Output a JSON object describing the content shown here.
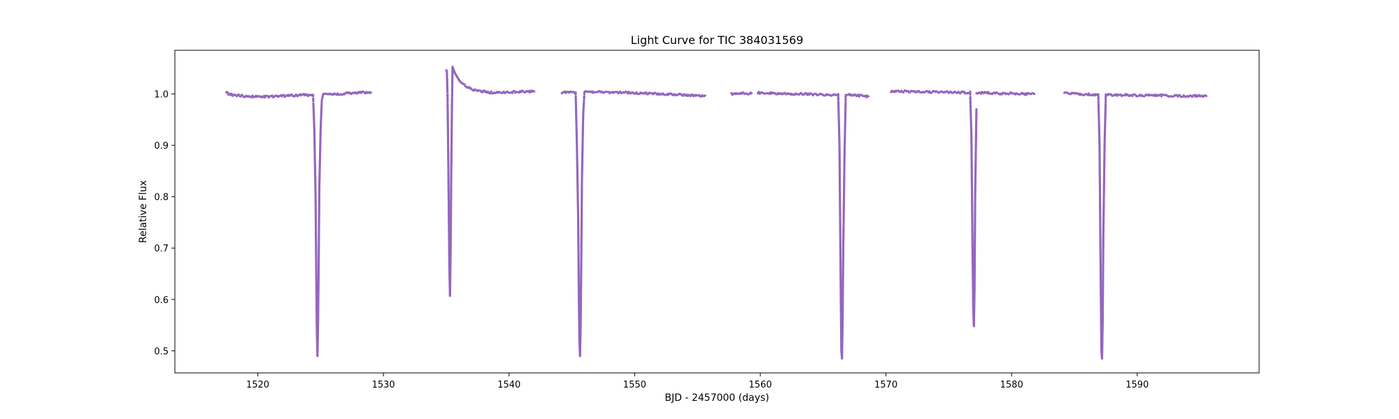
{
  "chart_data": {
    "type": "scatter",
    "title": "Light Curve for TIC 384031569",
    "xlabel": "BJD - 2457000 (days)",
    "ylabel": "Relative Flux",
    "xlim": [
      1513.4,
      1599.7
    ],
    "ylim": [
      0.457,
      1.085
    ],
    "xticks": [
      1520,
      1530,
      1540,
      1550,
      1560,
      1570,
      1580,
      1590
    ],
    "yticks": [
      0.5,
      0.6,
      0.7,
      0.8,
      0.9,
      1.0
    ],
    "xtick_labels": [
      "1520",
      "1530",
      "1540",
      "1550",
      "1560",
      "1570",
      "1580",
      "1590"
    ],
    "ytick_labels": [
      "0.5",
      "0.6",
      "0.7",
      "0.8",
      "0.9",
      "1.0"
    ],
    "grid": false,
    "legend": "none",
    "series": [
      {
        "color": "#9467bd",
        "marker": "dot",
        "segments": [
          {
            "x": [
              1517.5,
              1517.7,
              1518.0,
              1518.5,
              1519.0,
              1519.5,
              1520.0,
              1520.5,
              1521.0,
              1521.5,
              1522.0,
              1522.5,
              1523.0,
              1523.5,
              1524.0,
              1524.4
            ],
            "y": [
              1.003,
              1.0,
              0.998,
              0.997,
              0.996,
              0.995,
              0.995,
              0.995,
              0.995,
              0.996,
              0.996,
              0.997,
              0.997,
              0.998,
              0.998,
              0.998
            ]
          },
          {
            "x": [
              1524.4,
              1524.5,
              1524.6,
              1524.65,
              1524.7,
              1524.75,
              1524.8,
              1524.85,
              1524.9,
              1525.0,
              1525.1,
              1525.2
            ],
            "y": [
              0.998,
              0.93,
              0.8,
              0.66,
              0.54,
              0.49,
              0.56,
              0.68,
              0.82,
              0.93,
              0.99,
              0.999
            ]
          },
          {
            "x": [
              1525.2,
              1525.5,
              1526.0,
              1526.5,
              1527.0,
              1527.5,
              1528.0,
              1528.5,
              1529.0
            ],
            "y": [
              0.999,
              0.999,
              1.0,
              1.0,
              1.001,
              1.001,
              1.002,
              1.003,
              1.003
            ]
          },
          {
            "x": [
              1535.0,
              1535.05,
              1535.1,
              1535.15,
              1535.2,
              1535.25,
              1535.3,
              1535.35,
              1535.4,
              1535.45,
              1535.5,
              1535.6,
              1535.7,
              1535.9,
              1536.1,
              1536.4,
              1536.8,
              1537.2,
              1537.8,
              1538.5,
              1539.5,
              1540.5,
              1541.5,
              1542.0
            ],
            "y": [
              1.046,
              1.045,
              1.0,
              0.9,
              0.78,
              0.66,
              0.607,
              0.7,
              0.85,
              0.97,
              1.053,
              1.046,
              1.04,
              1.032,
              1.024,
              1.018,
              1.012,
              1.008,
              1.005,
              1.003,
              1.003,
              1.004,
              1.005,
              1.005
            ]
          },
          {
            "x": [
              1544.2,
              1544.5,
              1545.0,
              1545.3
            ],
            "y": [
              1.002,
              1.003,
              1.003,
              1.003
            ]
          },
          {
            "x": [
              1545.3,
              1545.4,
              1545.5,
              1545.55,
              1545.6,
              1545.65,
              1545.7,
              1545.75,
              1545.8,
              1545.9,
              1546.0
            ],
            "y": [
              1.003,
              0.9,
              0.76,
              0.62,
              0.52,
              0.49,
              0.55,
              0.68,
              0.83,
              0.96,
              1.003
            ]
          },
          {
            "x": [
              1546.0,
              1547.0,
              1548.0,
              1549.0,
              1550.0,
              1551.0,
              1552.0,
              1553.0,
              1554.0,
              1555.0,
              1555.6
            ],
            "y": [
              1.004,
              1.004,
              1.003,
              1.003,
              1.002,
              1.001,
              1.0,
              0.999,
              0.998,
              0.997,
              0.997
            ]
          },
          {
            "x": [
              1557.7,
              1558.2,
              1558.8,
              1559.3
            ],
            "y": [
              1.0,
              1.001,
              1.001,
              1.001
            ]
          },
          {
            "x": [
              1559.8,
              1560.5,
              1561.5,
              1562.5,
              1563.5,
              1564.5,
              1565.5,
              1566.2
            ],
            "y": [
              1.002,
              1.002,
              1.001,
              1.0,
              1.0,
              0.999,
              0.998,
              0.998
            ]
          },
          {
            "x": [
              1566.2,
              1566.3,
              1566.35,
              1566.4,
              1566.45,
              1566.5,
              1566.55,
              1566.6,
              1566.7,
              1566.8
            ],
            "y": [
              0.998,
              0.9,
              0.76,
              0.62,
              0.5,
              0.485,
              0.56,
              0.7,
              0.88,
              0.998
            ]
          },
          {
            "x": [
              1566.8,
              1567.3,
              1567.8,
              1568.3,
              1568.6
            ],
            "y": [
              0.998,
              0.998,
              0.997,
              0.996,
              0.995
            ]
          },
          {
            "x": [
              1570.4,
              1571.0,
              1572.0,
              1573.0,
              1574.0,
              1575.0,
              1576.0,
              1576.7
            ],
            "y": [
              1.005,
              1.005,
              1.005,
              1.004,
              1.004,
              1.003,
              1.003,
              1.003
            ]
          },
          {
            "x": [
              1576.7,
              1576.8,
              1576.85,
              1576.9,
              1576.95,
              1577.0,
              1577.05,
              1577.1,
              1577.2
            ],
            "y": [
              1.003,
              0.92,
              0.8,
              0.68,
              0.58,
              0.548,
              0.62,
              0.8,
              0.97
            ]
          },
          {
            "x": [
              1577.2,
              1578.0,
              1579.0,
              1580.0,
              1581.0,
              1581.8
            ],
            "y": [
              1.002,
              1.002,
              1.001,
              1.001,
              1.0,
              1.0
            ]
          },
          {
            "x": [
              1584.2,
              1584.5,
              1585.0,
              1585.5,
              1586.0,
              1586.5,
              1586.9
            ],
            "y": [
              1.002,
              1.001,
              1.0,
              1.0,
              0.999,
              0.999,
              0.999
            ]
          },
          {
            "x": [
              1586.9,
              1587.0,
              1587.05,
              1587.1,
              1587.15,
              1587.2,
              1587.25,
              1587.3,
              1587.4,
              1587.5
            ],
            "y": [
              0.999,
              0.9,
              0.76,
              0.62,
              0.5,
              0.485,
              0.56,
              0.72,
              0.9,
              0.998
            ]
          },
          {
            "x": [
              1587.5,
              1588.0,
              1589.0,
              1590.0,
              1591.0,
              1592.0,
              1593.0,
              1594.0,
              1595.0,
              1595.5
            ],
            "y": [
              0.998,
              0.998,
              0.998,
              0.997,
              0.997,
              0.997,
              0.996,
              0.996,
              0.996,
              0.996
            ]
          }
        ]
      }
    ]
  }
}
